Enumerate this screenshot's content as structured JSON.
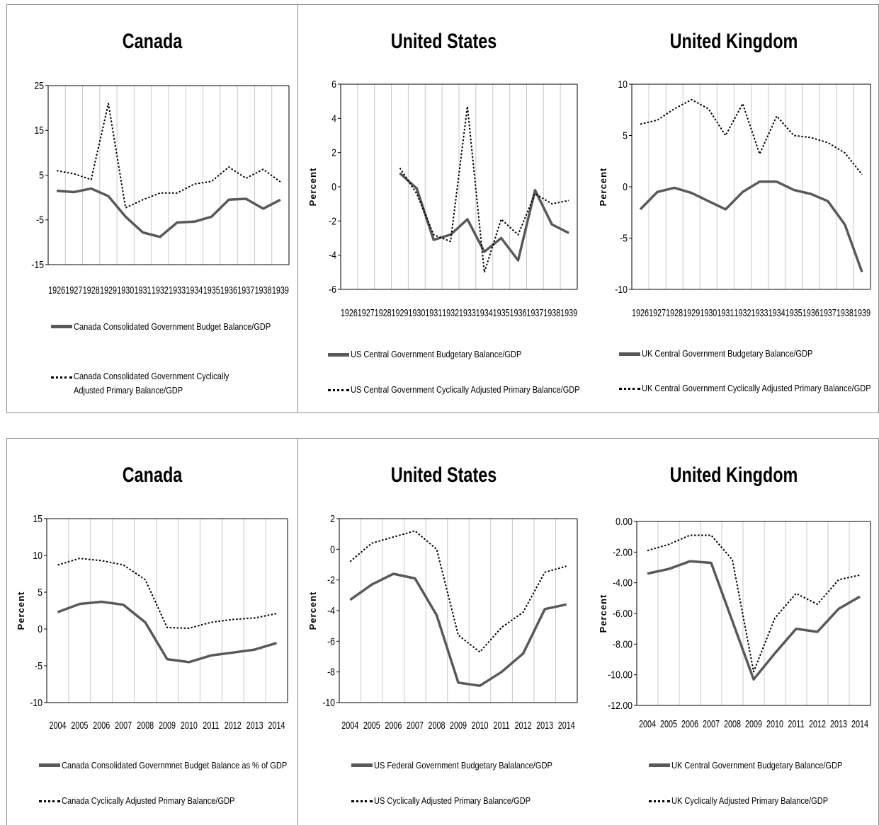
{
  "chart_data": [
    {
      "type": "line",
      "title": "Canada",
      "ylabel": "",
      "ylim": [
        -15,
        25
      ],
      "yticks": [
        "25",
        "15",
        "5",
        "-5",
        "-15"
      ],
      "yticks_values": [
        25,
        15,
        5,
        -5,
        -15
      ],
      "categories": [
        "1926",
        "1927",
        "1928",
        "1929",
        "1930",
        "1931",
        "1932",
        "1933",
        "1934",
        "1935",
        "1936",
        "1937",
        "1938",
        "1939"
      ],
      "series": [
        {
          "name": "Canada Consolidated Government Budget Balance/GDP",
          "style": "solid",
          "values": [
            1.5,
            1.2,
            2.0,
            0.3,
            -4.3,
            -7.8,
            -8.8,
            -5.6,
            -5.4,
            -4.3,
            -0.5,
            -0.3,
            -2.5,
            -0.5
          ]
        },
        {
          "name": "Canada Consolidated Government Cyclically Adjusted Primary Balance/GDP",
          "style": "dotted",
          "values": [
            6.0,
            5.3,
            4.0,
            21.0,
            -2.3,
            -0.5,
            1.0,
            1.0,
            3.0,
            3.6,
            6.8,
            4.3,
            6.3,
            3.5
          ]
        }
      ]
    },
    {
      "type": "line",
      "title": "United States",
      "ylabel": "Percent",
      "ylim": [
        -6,
        6
      ],
      "yticks": [
        "6",
        "4",
        "2",
        "0",
        "-2",
        "-4",
        "-6"
      ],
      "yticks_values": [
        6,
        4,
        2,
        0,
        -2,
        -4,
        -6
      ],
      "categories": [
        "1926",
        "1927",
        "1928",
        "1929",
        "1930",
        "1931",
        "1932",
        "1933",
        "1934",
        "1935",
        "1936",
        "1937",
        "1938",
        "1939"
      ],
      "series": [
        {
          "name": "US Central Government Budgetary Balance/GDP",
          "style": "solid",
          "values": [
            null,
            null,
            null,
            0.8,
            -0.1,
            -3.1,
            -2.8,
            -1.9,
            -3.8,
            -3.0,
            -4.3,
            -0.2,
            -2.2,
            -2.7
          ]
        },
        {
          "name": "US Central Government Cyclically Adjusted Primary Balance/GDP",
          "style": "dotted",
          "values": [
            null,
            null,
            null,
            1.1,
            -0.4,
            -2.8,
            -3.2,
            4.7,
            -5.0,
            -1.9,
            -2.8,
            -0.4,
            -1.0,
            -0.8
          ]
        }
      ]
    },
    {
      "type": "line",
      "title": "United Kingdom",
      "ylabel": "Percent",
      "ylim": [
        -10,
        10
      ],
      "yticks": [
        "10",
        "5",
        "0",
        "-5",
        "-10"
      ],
      "yticks_values": [
        10,
        5,
        0,
        -5,
        -10
      ],
      "categories": [
        "1926",
        "1927",
        "1928",
        "1929",
        "1930",
        "1931",
        "1932",
        "1933",
        "1934",
        "1935",
        "1936",
        "1937",
        "1938",
        "1939"
      ],
      "series": [
        {
          "name": "UK Central Government Budgetary Balance/GDP",
          "style": "solid",
          "values": [
            -2.2,
            -0.5,
            -0.1,
            -0.6,
            -1.4,
            -2.2,
            -0.5,
            0.5,
            0.5,
            -0.3,
            -0.7,
            -1.4,
            -3.7,
            -8.3
          ]
        },
        {
          "name": "UK Central Government Cyclically Adjusted Primary Balance/GDP",
          "style": "dotted",
          "values": [
            6.1,
            6.5,
            7.6,
            8.5,
            7.6,
            5.0,
            8.1,
            3.2,
            6.9,
            5.0,
            4.8,
            4.3,
            3.3,
            1.2
          ]
        }
      ]
    },
    {
      "type": "line",
      "title": "Canada",
      "ylabel": "Percent",
      "ylim": [
        -10,
        15
      ],
      "yticks": [
        "15",
        "10",
        "5",
        "0",
        "-5",
        "-10"
      ],
      "yticks_values": [
        15,
        10,
        5,
        0,
        -5,
        -10
      ],
      "categories": [
        "2004",
        "2005",
        "2006",
        "2007",
        "2008",
        "2009",
        "2010",
        "2011",
        "2012",
        "2013",
        "2014"
      ],
      "series": [
        {
          "name": "Canada Consolidated Governmnet Budget Balance as % of GDP",
          "style": "solid",
          "values": [
            2.3,
            3.4,
            3.7,
            3.3,
            0.9,
            -4.1,
            -4.5,
            -3.6,
            -3.2,
            -2.8,
            -1.9
          ]
        },
        {
          "name": "Canada Cyclically Adjusted Primary Balance/GDP",
          "style": "dotted",
          "values": [
            8.7,
            9.6,
            9.3,
            8.7,
            6.7,
            0.2,
            0.1,
            0.9,
            1.3,
            1.5,
            2.1
          ]
        }
      ]
    },
    {
      "type": "line",
      "title": "United States",
      "ylabel": "Percent",
      "ylim": [
        -10,
        2
      ],
      "yticks": [
        "2",
        "0",
        "-2",
        "-4",
        "-6",
        "-8",
        "-10"
      ],
      "yticks_values": [
        2,
        0,
        -2,
        -4,
        -6,
        -8,
        -10
      ],
      "categories": [
        "2004",
        "2005",
        "2006",
        "2007",
        "2008",
        "2009",
        "2010",
        "2011",
        "2012",
        "2013",
        "2014"
      ],
      "series": [
        {
          "name": "US Federal Government Budgetary Balalance/GDP",
          "style": "solid",
          "values": [
            -3.3,
            -2.3,
            -1.6,
            -1.9,
            -4.3,
            -8.7,
            -8.9,
            -8.0,
            -6.8,
            -3.9,
            -3.6
          ]
        },
        {
          "name": "US Cyclically Adjusted Primary Balance/GDP",
          "style": "dotted",
          "values": [
            -0.8,
            0.4,
            0.8,
            1.2,
            0.0,
            -5.6,
            -6.7,
            -5.1,
            -4.1,
            -1.5,
            -1.1
          ]
        }
      ]
    },
    {
      "type": "line",
      "title": "United Kingdom",
      "ylabel": "Percent",
      "ylim": [
        -12,
        0
      ],
      "yticks": [
        "0.00",
        "-2.00",
        "-4.00",
        "-6.00",
        "-8.00",
        "-10.00",
        "-12.00"
      ],
      "yticks_values": [
        0,
        -2,
        -4,
        -6,
        -8,
        -10,
        -12
      ],
      "categories": [
        "2004",
        "2005",
        "2006",
        "2007",
        "2008",
        "2009",
        "2010",
        "2011",
        "2012",
        "2013",
        "2014"
      ],
      "series": [
        {
          "name": "UK Central Government Budgetary Balance/GDP",
          "style": "solid",
          "values": [
            -3.4,
            -3.1,
            -2.6,
            -2.7,
            -6.5,
            -10.3,
            -8.6,
            -7.0,
            -7.2,
            -5.7,
            -4.9
          ]
        },
        {
          "name": "UK Cyclically Adjusted Primary Balance/GDP",
          "style": "dotted",
          "values": [
            -1.9,
            -1.5,
            -0.9,
            -0.9,
            -2.5,
            -9.8,
            -6.3,
            -4.7,
            -5.4,
            -3.8,
            -3.5
          ]
        }
      ]
    }
  ]
}
